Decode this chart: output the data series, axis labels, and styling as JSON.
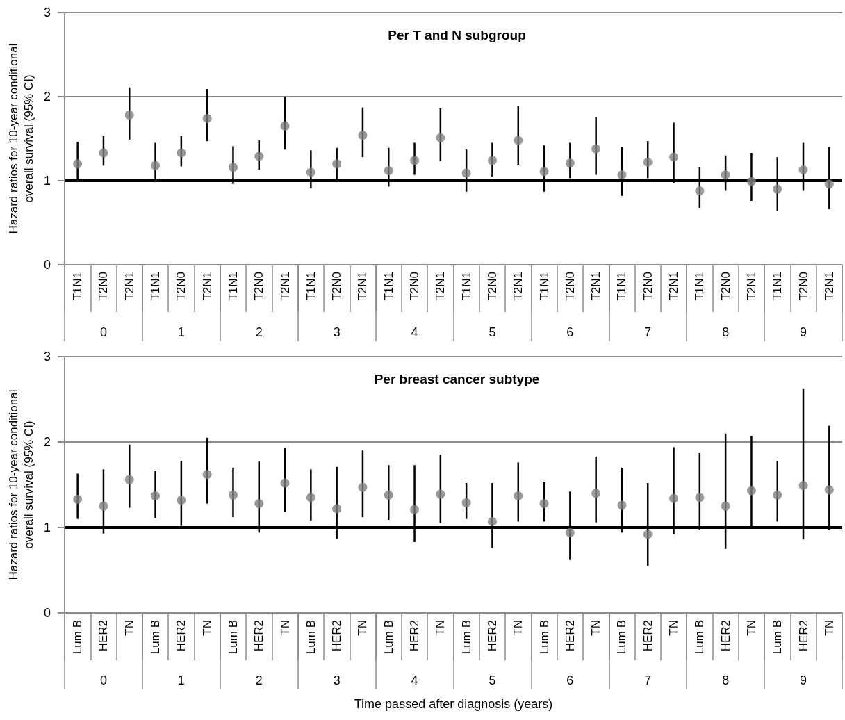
{
  "chart_data": [
    {
      "type": "scatter",
      "title": "Per T and N subgroup",
      "ylabel": "Hazard ratios for 10-year conditional overall survival (95% CI)",
      "marker": "circle",
      "color": "#808080",
      "ylim": [
        0,
        3
      ],
      "yticks": [
        0,
        1,
        2,
        3
      ],
      "ref_lines": [
        {
          "axis": "y",
          "value": 1,
          "label": null,
          "color": "#000000"
        },
        {
          "axis": "y",
          "value": 2,
          "label": null,
          "color": "#8c8c8c"
        },
        {
          "axis": "y",
          "value": 3,
          "label": null,
          "color": "#8c8c8c"
        }
      ],
      "annotations": [
        "0",
        "1",
        "2",
        "3",
        "4",
        "5",
        "6",
        "7",
        "8",
        "9"
      ],
      "categories": [
        "T1N1",
        "T2N0",
        "T2N1",
        "T1N1",
        "T2N0",
        "T2N1",
        "T1N1",
        "T2N0",
        "T2N1",
        "T1N1",
        "T2N0",
        "T2N1",
        "T1N1",
        "T2N0",
        "T2N1",
        "T1N1",
        "T2N0",
        "T2N1",
        "T1N1",
        "T2N0",
        "T2N1",
        "T1N1",
        "T2N0",
        "T2N1",
        "T1N1",
        "T2N0",
        "T2N1",
        "T1N1",
        "T2N0",
        "T2N1"
      ],
      "values": [
        1.2,
        1.33,
        1.78,
        1.18,
        1.33,
        1.74,
        1.16,
        1.29,
        1.65,
        1.1,
        1.2,
        1.54,
        1.12,
        1.24,
        1.51,
        1.09,
        1.24,
        1.48,
        1.11,
        1.21,
        1.38,
        1.07,
        1.22,
        1.28,
        0.88,
        1.07,
        0.99,
        0.9,
        1.13,
        0.96
      ],
      "errors": [
        [
          1.0,
          1.46
        ],
        [
          1.18,
          1.53
        ],
        [
          1.49,
          2.11
        ],
        [
          1.0,
          1.45
        ],
        [
          1.17,
          1.53
        ],
        [
          1.47,
          2.09
        ],
        [
          0.96,
          1.41
        ],
        [
          1.13,
          1.48
        ],
        [
          1.37,
          2.0
        ],
        [
          0.91,
          1.36
        ],
        [
          1.02,
          1.39
        ],
        [
          1.28,
          1.87
        ],
        [
          0.93,
          1.39
        ],
        [
          1.07,
          1.45
        ],
        [
          1.23,
          1.86
        ],
        [
          0.87,
          1.37
        ],
        [
          1.05,
          1.45
        ],
        [
          1.19,
          1.89
        ],
        [
          0.87,
          1.42
        ],
        [
          1.03,
          1.45
        ],
        [
          1.07,
          1.76
        ],
        [
          0.82,
          1.4
        ],
        [
          1.03,
          1.47
        ],
        [
          0.97,
          1.69
        ],
        [
          0.67,
          1.16
        ],
        [
          0.88,
          1.3
        ],
        [
          0.76,
          1.33
        ],
        [
          0.64,
          1.28
        ],
        [
          0.88,
          1.45
        ],
        [
          0.66,
          1.4
        ]
      ]
    },
    {
      "type": "scatter",
      "title": "Per breast cancer subtype",
      "ylabel": "Hazard ratios for 10-year conditional overall survival (95% CI)",
      "xlabel": "Time passed after diagnosis (years)",
      "marker": "circle",
      "color": "#808080",
      "ylim": [
        0,
        3
      ],
      "yticks": [
        0,
        1,
        2,
        3
      ],
      "ref_lines": [
        {
          "axis": "y",
          "value": 1,
          "label": null,
          "color": "#000000"
        },
        {
          "axis": "y",
          "value": 2,
          "label": null,
          "color": "#8c8c8c"
        },
        {
          "axis": "y",
          "value": 3,
          "label": null,
          "color": "#8c8c8c"
        }
      ],
      "annotations": [
        "0",
        "1",
        "2",
        "3",
        "4",
        "5",
        "6",
        "7",
        "8",
        "9"
      ],
      "categories": [
        "Lum B",
        "HER2",
        "TN",
        "Lum B",
        "HER2",
        "TN",
        "Lum B",
        "HER2",
        "TN",
        "Lum B",
        "HER2",
        "TN",
        "Lum B",
        "HER2",
        "TN",
        "Lum B",
        "HER2",
        "TN",
        "Lum B",
        "HER2",
        "TN",
        "Lum B",
        "HER2",
        "TN",
        "Lum B",
        "HER2",
        "TN",
        "Lum B",
        "HER2",
        "TN"
      ],
      "values": [
        1.33,
        1.25,
        1.56,
        1.37,
        1.32,
        1.62,
        1.38,
        1.28,
        1.52,
        1.35,
        1.22,
        1.47,
        1.38,
        1.21,
        1.39,
        1.29,
        1.07,
        1.37,
        1.28,
        0.94,
        1.4,
        1.26,
        0.92,
        1.34,
        1.35,
        1.25,
        1.43,
        1.38,
        1.49,
        1.44
      ],
      "errors": [
        [
          1.1,
          1.63
        ],
        [
          0.93,
          1.68
        ],
        [
          1.23,
          1.97
        ],
        [
          1.11,
          1.66
        ],
        [
          1.02,
          1.78
        ],
        [
          1.28,
          2.05
        ],
        [
          1.12,
          1.7
        ],
        [
          0.94,
          1.77
        ],
        [
          1.18,
          1.93
        ],
        [
          1.08,
          1.68
        ],
        [
          0.87,
          1.71
        ],
        [
          1.12,
          1.9
        ],
        [
          1.09,
          1.73
        ],
        [
          0.83,
          1.73
        ],
        [
          1.05,
          1.85
        ],
        [
          1.1,
          1.52
        ],
        [
          0.76,
          1.52
        ],
        [
          1.07,
          1.76
        ],
        [
          1.07,
          1.53
        ],
        [
          0.62,
          1.42
        ],
        [
          1.06,
          1.83
        ],
        [
          0.94,
          1.7
        ],
        [
          0.55,
          1.52
        ],
        [
          0.92,
          1.94
        ],
        [
          0.97,
          1.87
        ],
        [
          0.75,
          2.1
        ],
        [
          1.0,
          2.07
        ],
        [
          1.07,
          1.78
        ],
        [
          0.86,
          2.62
        ],
        [
          0.97,
          2.19
        ]
      ]
    }
  ]
}
